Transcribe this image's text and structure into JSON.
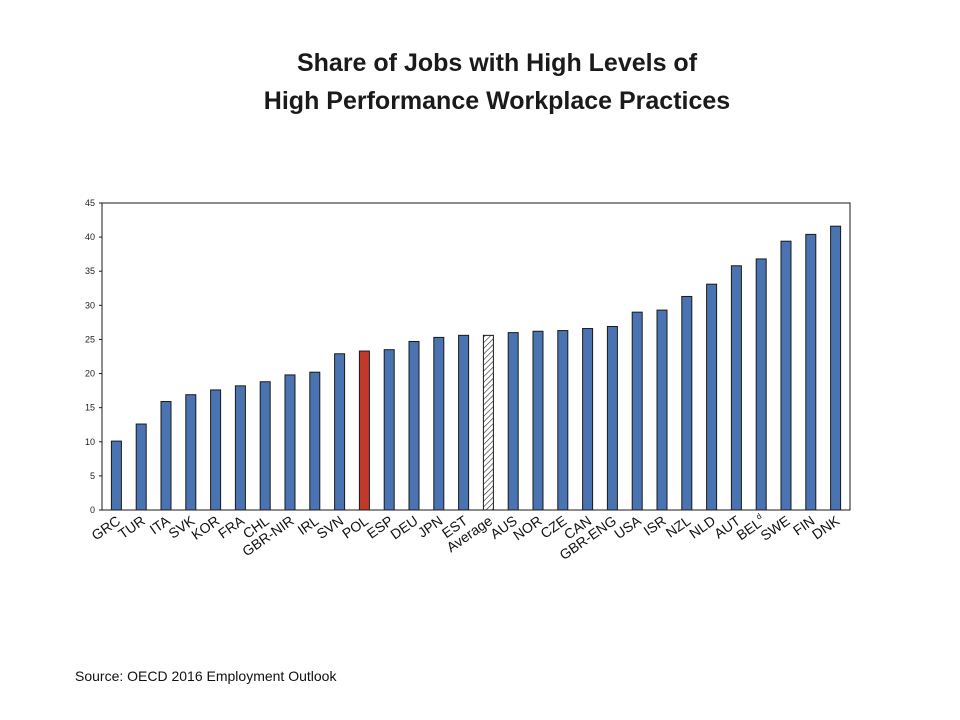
{
  "title_lines": [
    "Share of Jobs with High Levels of",
    "High Performance Workplace Practices"
  ],
  "source": "Source: OECD 2016 Employment Outlook",
  "colors": {
    "default": "#4a73b2",
    "highlight": "#c0392b",
    "hatched": "#ffffff",
    "edge": "#1a1a1a"
  },
  "chart_data": {
    "type": "bar",
    "title": "Share of Jobs with High Levels of High Performance Workplace Practices",
    "xlabel": "",
    "ylabel": "",
    "ylim": [
      0,
      45
    ],
    "yticks": [
      0,
      5,
      10,
      15,
      20,
      25,
      30,
      35,
      40,
      45
    ],
    "grid": false,
    "legend": "none",
    "categories": [
      "GRC",
      "TUR",
      "ITA",
      "SVK",
      "KOR",
      "FRA",
      "CHL",
      "GBR-NIR",
      "IRL",
      "SVN",
      "POL",
      "ESP",
      "DEU",
      "JPN",
      "EST",
      "Average",
      "AUS",
      "NOR",
      "CZE",
      "CAN",
      "GBR-ENG",
      "USA",
      "ISR",
      "NZL",
      "NLD",
      "AUT",
      "BEL",
      "SWE",
      "FIN",
      "DNK"
    ],
    "category_superscripts": {
      "BEL": "d"
    },
    "values": [
      10.1,
      12.6,
      15.9,
      16.9,
      17.6,
      18.2,
      18.8,
      19.8,
      20.2,
      22.9,
      23.3,
      23.5,
      24.7,
      25.3,
      25.6,
      25.6,
      26.0,
      26.2,
      26.3,
      26.6,
      26.9,
      29.0,
      29.3,
      31.3,
      33.1,
      35.8,
      36.8,
      39.4,
      40.4,
      41.6
    ],
    "highlight": {
      "POL": "highlight",
      "Average": "hatched"
    }
  }
}
